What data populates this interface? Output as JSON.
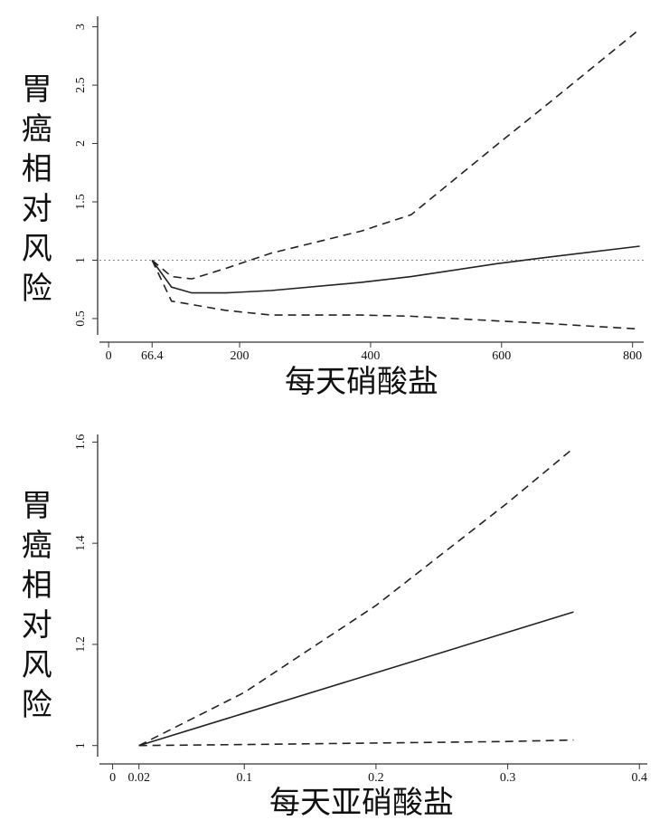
{
  "chart_data": [
    {
      "type": "line",
      "ylabel": "胃癌相对风险",
      "xlabel": "每天硝酸盐",
      "x": [
        66.4,
        96,
        127,
        179,
        248,
        386,
        462,
        593,
        662,
        811
      ],
      "series": [
        {
          "color": "#222222",
          "style": "solid",
          "values": [
            1,
            0.77,
            0.72,
            0.72,
            0.74,
            0.81,
            0.86,
            0.97,
            1.02,
            1.12
          ]
        },
        {
          "color": "#222222",
          "style": "dashed",
          "values": [
            1,
            0.86,
            0.84,
            0.93,
            1.06,
            1.25,
            1.39,
            1.99,
            2.3,
            2.98
          ]
        },
        {
          "color": "#222222",
          "style": "dashed",
          "values": [
            1,
            0.65,
            0.62,
            0.57,
            0.53,
            0.53,
            0.52,
            0.48,
            0.46,
            0.41
          ]
        }
      ],
      "xlim": [
        -14,
        817
      ],
      "xticks": [
        0,
        66.4,
        200,
        400,
        600,
        800
      ],
      "ylim": [
        0.36,
        3.09
      ],
      "yticks": [
        0.5,
        1,
        1.5,
        2,
        2.5,
        3
      ],
      "hline": 1,
      "hline_style": "dotted"
    },
    {
      "type": "line",
      "ylabel": "胃癌相对风险",
      "xlabel": "每天亚硝酸盐",
      "x": [
        0.02,
        0.1,
        0.2,
        0.3,
        0.35
      ],
      "series": [
        {
          "color": "#222222",
          "style": "solid",
          "values": [
            1,
            1.064,
            1.144,
            1.224,
            1.264
          ]
        },
        {
          "color": "#222222",
          "style": "dashed",
          "values": [
            1,
            1.105,
            1.277,
            1.48,
            1.588
          ]
        },
        {
          "color": "#222222",
          "style": "dashed",
          "values": [
            1,
            1.002,
            1.005,
            1.008,
            1.011
          ]
        }
      ],
      "xlim": [
        -0.01,
        0.406
      ],
      "xticks": [
        0,
        0.02,
        0.1,
        0.2,
        0.3,
        0.4
      ],
      "ylim": [
        0.978,
        1.615
      ],
      "yticks": [
        1,
        1.2,
        1.4,
        1.6
      ]
    }
  ]
}
